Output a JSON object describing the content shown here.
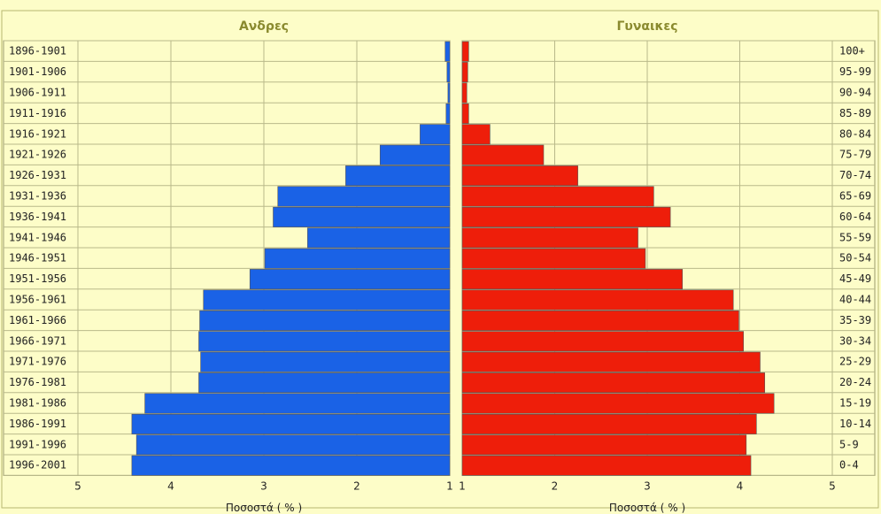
{
  "chart_data": {
    "type": "bar",
    "orientation": "horizontal-pyramid",
    "left_title": "Ανδρες",
    "right_title": "Γυναικες",
    "xlabel_left": "Ποσοστά ( % )",
    "xlabel_right": "Ποσοστά ( % )",
    "xlim": [
      1,
      5
    ],
    "x_ticks": [
      5,
      4,
      3,
      2,
      1
    ],
    "x_ticks_right": [
      1,
      2,
      3,
      4,
      5
    ],
    "birth_periods": [
      "1896-1901",
      "1901-1906",
      "1906-1911",
      "1911-1916",
      "1916-1921",
      "1921-1926",
      "1926-1931",
      "1931-1936",
      "1936-1941",
      "1941-1946",
      "1946-1951",
      "1951-1956",
      "1956-1961",
      "1961-1966",
      "1966-1971",
      "1971-1976",
      "1976-1981",
      "1981-1986",
      "1986-1991",
      "1991-1996",
      "1996-2001"
    ],
    "age_groups": [
      "100+",
      "95-99",
      "90-94",
      "85-89",
      "80-84",
      "75-79",
      "70-74",
      "65-69",
      "60-64",
      "55-59",
      "50-54",
      "45-49",
      "40-44",
      "35-39",
      "30-34",
      "25-29",
      "20-24",
      "15-19",
      "10-14",
      "5-9",
      "0-4"
    ],
    "series": [
      {
        "name": "Ανδρες",
        "color": "#1a62e6",
        "values": [
          1.05,
          1.03,
          1.02,
          1.04,
          1.32,
          1.75,
          2.12,
          2.85,
          2.9,
          2.53,
          2.99,
          3.15,
          3.65,
          3.69,
          3.7,
          3.68,
          3.7,
          4.28,
          4.42,
          4.37,
          4.42
        ]
      },
      {
        "name": "Γυναικες",
        "color": "#ee1e0a",
        "values": [
          1.07,
          1.06,
          1.05,
          1.07,
          1.3,
          1.88,
          2.25,
          3.07,
          3.25,
          2.9,
          2.98,
          3.38,
          3.93,
          3.99,
          4.04,
          4.22,
          4.27,
          4.37,
          4.18,
          4.07,
          4.12
        ]
      }
    ],
    "grid": true
  }
}
